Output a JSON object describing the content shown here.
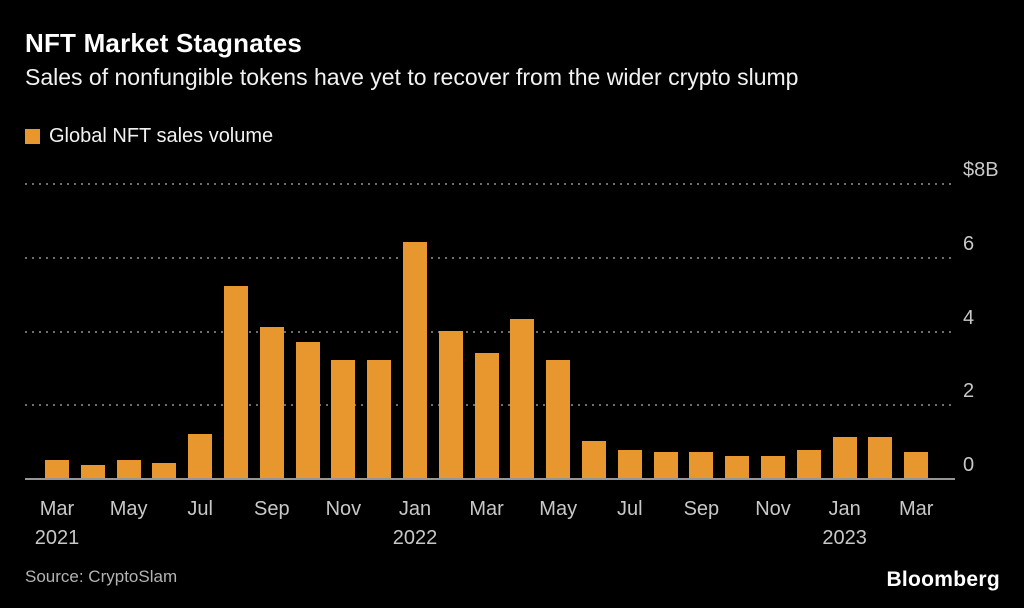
{
  "header": {
    "title": "NFT Market Stagnates",
    "subtitle": "Sales of nonfungible tokens have yet to recover from the wider crypto slump"
  },
  "legend": {
    "label": "Global NFT sales volume",
    "swatch_color": "#E8962E"
  },
  "footer": {
    "source": "Source: CryptoSlam",
    "brand": "Bloomberg"
  },
  "chart_data": {
    "type": "bar",
    "title": "NFT Market Stagnates",
    "subtitle": "Sales of nonfungible tokens have yet to recover from the wider crypto slump",
    "series_name": "Global NFT sales volume",
    "unit": "billions of US dollars",
    "bar_color": "#E8962E",
    "grid": "dotted horizontal gridlines, solid zero baseline",
    "legend_position": "top-left",
    "y_axis_side": "right",
    "ylim": [
      0,
      8
    ],
    "y_ticks": [
      {
        "label": "$8B",
        "value": 8
      },
      {
        "label": "6",
        "value": 6
      },
      {
        "label": "4",
        "value": 4
      },
      {
        "label": "2",
        "value": 2
      },
      {
        "label": "0",
        "value": 0
      }
    ],
    "categories": [
      "Mar 2021",
      "Apr 2021",
      "May 2021",
      "Jun 2021",
      "Jul 2021",
      "Aug 2021",
      "Sep 2021",
      "Oct 2021",
      "Nov 2021",
      "Dec 2021",
      "Jan 2022",
      "Feb 2022",
      "Mar 2022",
      "Apr 2022",
      "May 2022",
      "Jun 2022",
      "Jul 2022",
      "Aug 2022",
      "Sep 2022",
      "Oct 2022",
      "Nov 2022",
      "Dec 2022",
      "Jan 2023",
      "Feb 2023",
      "Mar 2023"
    ],
    "values": [
      0.5,
      0.35,
      0.5,
      0.4,
      1.2,
      5.2,
      4.1,
      3.7,
      3.2,
      3.2,
      6.4,
      4.0,
      3.4,
      4.3,
      3.2,
      1.0,
      0.75,
      0.7,
      0.7,
      0.6,
      0.6,
      0.75,
      1.1,
      1.1,
      0.7
    ],
    "x_ticks": [
      {
        "index": 0,
        "label": "Mar",
        "year": "2021"
      },
      {
        "index": 2,
        "label": "May"
      },
      {
        "index": 4,
        "label": "Jul"
      },
      {
        "index": 6,
        "label": "Sep"
      },
      {
        "index": 8,
        "label": "Nov"
      },
      {
        "index": 10,
        "label": "Jan",
        "year": "2022"
      },
      {
        "index": 12,
        "label": "Mar"
      },
      {
        "index": 14,
        "label": "May"
      },
      {
        "index": 16,
        "label": "Jul"
      },
      {
        "index": 18,
        "label": "Sep"
      },
      {
        "index": 20,
        "label": "Nov"
      },
      {
        "index": 22,
        "label": "Jan",
        "year": "2023"
      },
      {
        "index": 24,
        "label": "Mar"
      }
    ]
  }
}
